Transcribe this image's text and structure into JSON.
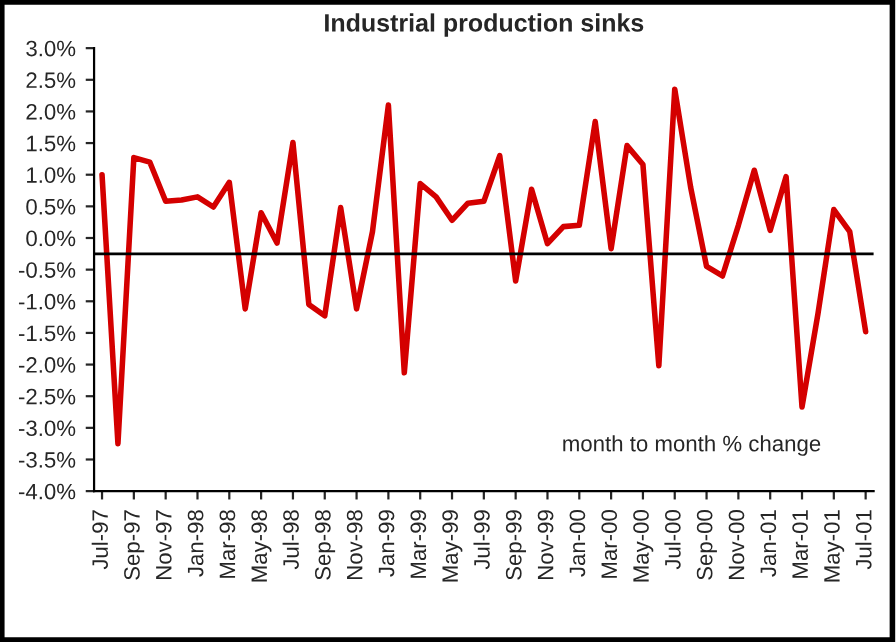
{
  "chart_data": {
    "type": "line",
    "title": "Industrial production sinks",
    "categories": [
      "Jul-97",
      null,
      "Sep-97",
      null,
      "Nov-97",
      null,
      "Jan-98",
      null,
      "Mar-98",
      null,
      "May-98",
      null,
      "Jul-98",
      null,
      "Sep-98",
      null,
      "Nov-98",
      null,
      "Jan-99",
      null,
      "Mar-99",
      null,
      "May-99",
      null,
      "Jul-99",
      null,
      "Sep-99",
      null,
      "Nov-99",
      null,
      "Jan-00",
      null,
      "Mar-00",
      null,
      "May-00",
      null,
      "Jul-00",
      null,
      "Sep-00",
      null,
      "Nov-00",
      null,
      "Jan-01",
      null,
      "Mar-01",
      null,
      "May-01",
      null,
      "Jul-01"
    ],
    "series": [
      {
        "color": "#d40000",
        "values": [
          1.0,
          -3.25,
          1.27,
          1.2,
          0.58,
          0.6,
          0.65,
          0.49,
          0.88,
          -1.12,
          0.4,
          -0.08,
          1.51,
          -1.05,
          -1.23,
          0.48,
          -1.12,
          0.1,
          2.1,
          -2.13,
          0.86,
          0.65,
          0.28,
          0.55,
          0.58,
          1.3,
          -0.68,
          0.77,
          -0.09,
          0.18,
          0.2,
          1.84,
          -0.17,
          1.46,
          1.16,
          -2.02,
          2.35,
          0.8,
          -0.45,
          -0.6,
          0.2,
          1.07,
          0.12,
          0.97,
          -2.67,
          -1.2,
          0.45,
          0.1,
          -1.48
        ]
      }
    ],
    "ylim": [
      -4.0,
      3.0
    ],
    "yticks": [
      {
        "value": -4.0,
        "label": "-4.0%"
      },
      {
        "value": -3.5,
        "label": "-3.5%"
      },
      {
        "value": -3.0,
        "label": "-3.0%"
      },
      {
        "value": -2.5,
        "label": "-2.5%"
      },
      {
        "value": -2.0,
        "label": "-2.0%"
      },
      {
        "value": -1.5,
        "label": "-1.5%"
      },
      {
        "value": -1.0,
        "label": "-1.0%"
      },
      {
        "value": -0.5,
        "label": "-0.5%"
      },
      {
        "value": 0.0,
        "label": "0.0%"
      },
      {
        "value": 0.5,
        "label": "0.5%"
      },
      {
        "value": 1.0,
        "label": "1.0%"
      },
      {
        "value": 1.5,
        "label": "1.5%"
      },
      {
        "value": 2.0,
        "label": "2.0%"
      },
      {
        "value": 2.5,
        "label": "2.5%"
      },
      {
        "value": 3.0,
        "label": "3.0%"
      }
    ],
    "ref_lines": [
      {
        "axis": "y",
        "value": -0.25,
        "color": "#000000"
      }
    ],
    "annotations": [
      "month to month % change"
    ],
    "grid": false,
    "legend": false
  }
}
